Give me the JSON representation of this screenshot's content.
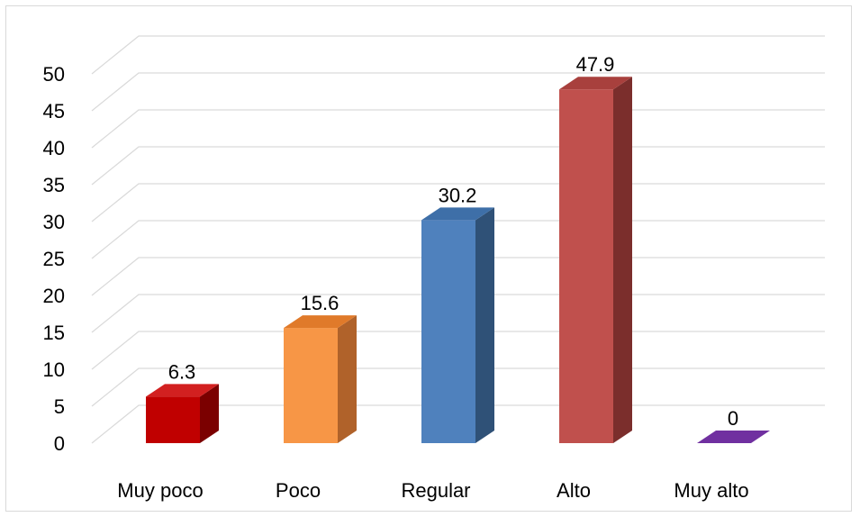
{
  "chart_data": {
    "type": "bar",
    "title": "",
    "xlabel": "",
    "ylabel": "",
    "categories": [
      "Muy poco",
      "Poco",
      "Regular",
      "Alto",
      "Muy alto"
    ],
    "values": [
      6.3,
      15.6,
      30.2,
      47.9,
      0
    ],
    "data_labels": [
      "6.3",
      "15.6",
      "30.2",
      "47.9",
      "0"
    ],
    "ylim": [
      0,
      50
    ],
    "yticks": [
      0,
      5,
      10,
      15,
      20,
      25,
      30,
      35,
      40,
      45,
      50
    ],
    "ytick_labels": [
      "0",
      "5",
      "10",
      "15",
      "20",
      "25",
      "30",
      "35",
      "40",
      "45",
      "50"
    ],
    "grid": true,
    "legend": "none",
    "style": "3d-column",
    "colors": [
      {
        "front": "#c00000",
        "side": "#7b0000",
        "top": "#d22020"
      },
      {
        "front": "#f79646",
        "side": "#b0622a",
        "top": "#e07a2a"
      },
      {
        "front": "#4f81bd",
        "side": "#2f5177",
        "top": "#3e6fa8"
      },
      {
        "front": "#c0504d",
        "side": "#7b2e2c",
        "top": "#a8403d"
      },
      {
        "front": "#7030a0",
        "side": "#4a1f6b",
        "top": "#7030a0"
      }
    ],
    "gridline_color": "#d9d9d9"
  }
}
